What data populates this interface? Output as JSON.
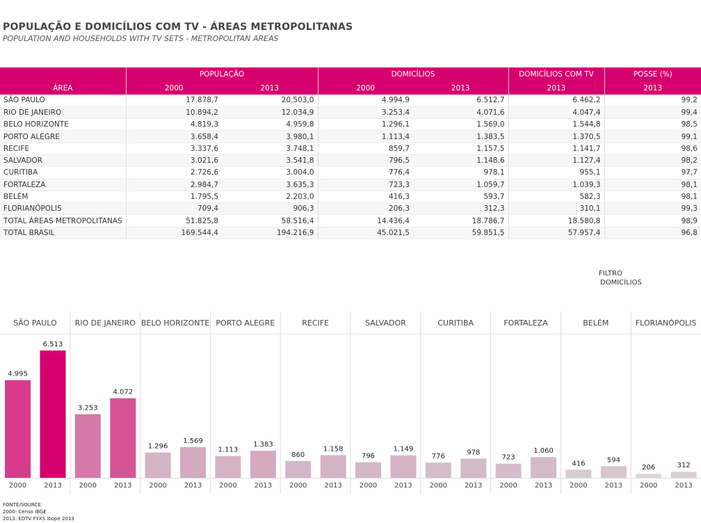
{
  "title": "POPULAÇÃO E DOMICÍLIOS COM TV - ÁREAS METROPOLITANAS",
  "subtitle": "POPULATION AND HOUSEHOLDS WITH TV SETS - METROPOLITAN AREAS",
  "table": {
    "group_headers": [
      "POPULAÇÃO",
      "DOMICÍLIOS",
      "DOMICÍLIOS COM TV",
      "POSSE (%)"
    ],
    "area_label": "ÁREA",
    "year_headers": [
      "2000",
      "2013",
      "2000",
      "2013",
      "2013",
      "2013"
    ],
    "rows": [
      {
        "name": "SÃO PAULO",
        "cells": [
          "17.878,7",
          "20.503,0",
          "4.994,9",
          "6.512,7",
          "6.462,2",
          "99,2"
        ]
      },
      {
        "name": "RIO DE JANEIRO",
        "cells": [
          "10.894,2",
          "12.034,9",
          "3.253,4",
          "4.071,6",
          "4.047,4",
          "99,4"
        ]
      },
      {
        "name": "BELO HORIZONTE",
        "cells": [
          "4.819,3",
          "4.959,8",
          "1.296,1",
          "1.569,0",
          "1.544,8",
          "98,5"
        ]
      },
      {
        "name": "PORTO ALEGRE",
        "cells": [
          "3.658,4",
          "3.980,1",
          "1.113,4",
          "1.383,5",
          "1.370,5",
          "99,1"
        ]
      },
      {
        "name": "RECIFE",
        "cells": [
          "3.337,6",
          "3.748,1",
          "859,7",
          "1.157,5",
          "1.141,7",
          "98,6"
        ]
      },
      {
        "name": "SALVADOR",
        "cells": [
          "3.021,6",
          "3.541,8",
          "796,5",
          "1.148,6",
          "1.127,4",
          "98,2"
        ]
      },
      {
        "name": "CURITIBA",
        "cells": [
          "2.726,6",
          "3.004,0",
          "776,4",
          "978,1",
          "955,1",
          "97,7"
        ]
      },
      {
        "name": "FORTALEZA",
        "cells": [
          "2.984,7",
          "3.635,3",
          "723,3",
          "1.059,7",
          "1.039,3",
          "98,1"
        ]
      },
      {
        "name": "BELÉM",
        "cells": [
          "1.795,5",
          "2.203,0",
          "416,3",
          "593,7",
          "582,3",
          "98,1"
        ]
      },
      {
        "name": "FLORIANÓPOLIS",
        "cells": [
          "709,4",
          "906,3",
          "206,3",
          "312,3",
          "310,1",
          "99,3"
        ]
      },
      {
        "name": "TOTAL ÁREAS METROPOLITANAS",
        "cells": [
          "51.825,8",
          "58.516,4",
          "14.436,4",
          "18.786,7",
          "18.580,8",
          "98,9"
        ]
      },
      {
        "name": "TOTAL BRASIL",
        "cells": [
          "169.544,4",
          "194.216,9",
          "45.021,5",
          "59.851,5",
          "57.957,4",
          "96,8"
        ]
      }
    ]
  },
  "filter": {
    "line1": "FILTRO",
    "line2": "DOMICÍLIOS"
  },
  "chart_data": {
    "type": "bar",
    "title": "",
    "xlabel": "",
    "ylabel": "",
    "ylim": [
      0,
      6513
    ],
    "grid": false,
    "categories": [
      "SÃO PAULO",
      "RIO DE JANEIRO",
      "BELO HORIZONTE",
      "PORTO ALEGRE",
      "RECIFE",
      "SALVADOR",
      "CURITIBA",
      "FORTALEZA",
      "BELÉM",
      "FLORIANÓPOLIS"
    ],
    "years": [
      "2000",
      "2013"
    ],
    "series": [
      {
        "values": [
          4995,
          3253,
          1296,
          1113,
          860,
          796,
          776,
          723,
          416,
          206
        ]
      },
      {
        "values": [
          6513,
          4072,
          1569,
          1383,
          1158,
          1149,
          978,
          1060,
          594,
          312
        ]
      }
    ],
    "value_labels": [
      [
        "4.995",
        "6.513"
      ],
      [
        "3.253",
        "4.072"
      ],
      [
        "1.296",
        "1.569"
      ],
      [
        "1.113",
        "1.383"
      ],
      [
        "860",
        "1.158"
      ],
      [
        "796",
        "1.149"
      ],
      [
        "776",
        "978"
      ],
      [
        "723",
        "1.060"
      ],
      [
        "416",
        "594"
      ],
      [
        "206",
        "312"
      ]
    ],
    "bar_colors": [
      [
        "#d83a8c",
        "#d6006f"
      ],
      [
        "#d679a8",
        "#d65395"
      ],
      [
        "#d4b3c4",
        "#d3aabf"
      ],
      [
        "#d4b3c4",
        "#d3aabf"
      ],
      [
        "#d4b7c6",
        "#d4b3c4"
      ],
      [
        "#d4b7c6",
        "#d4b3c4"
      ],
      [
        "#d5bdca",
        "#d4b9c7"
      ],
      [
        "#d5bdca",
        "#d4b9c7"
      ],
      [
        "#d7ccd2",
        "#d6c6ce"
      ],
      [
        "#d9d4d7",
        "#d8d0d4"
      ]
    ]
  },
  "source": {
    "line1": "FONTE/SOURCE:",
    "line2": "2000: Censo IBGE",
    "line3": "2013: EDTV FYXS Ibope 2013"
  }
}
